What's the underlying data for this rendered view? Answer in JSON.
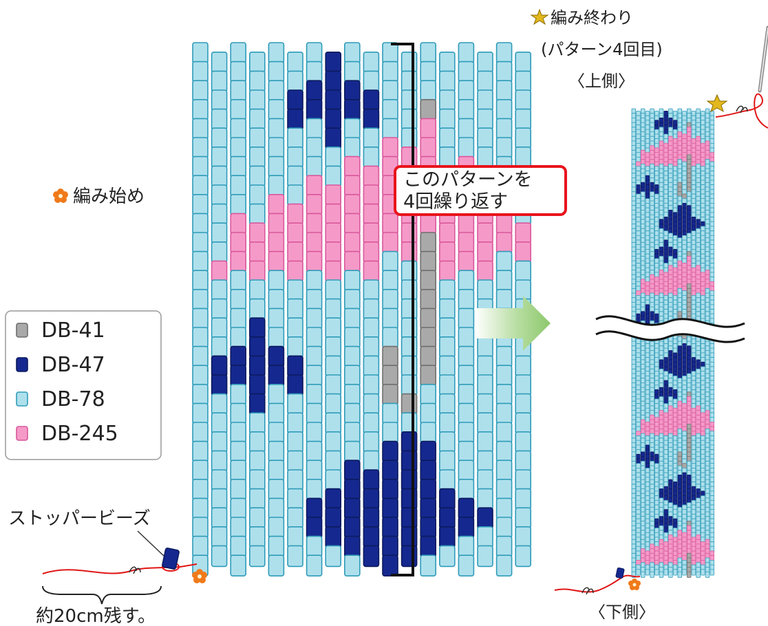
{
  "labels": {
    "start_marker": "編み始め",
    "repeat_note_line1": "このパターンを",
    "repeat_note_line2": "4回繰り返す",
    "end_marker_line1": "編み終わり",
    "end_marker_line2": "(パターン4回目)",
    "top_side": "〈上側〉",
    "bottom_side": "〈下側〉",
    "stopper_bead": "ストッパービーズ",
    "tail_length": "約20cm残す。"
  },
  "legend": [
    {
      "code": "DB-41",
      "color": "#a9a9a9",
      "border": "#6e6e6e"
    },
    {
      "code": "DB-47",
      "color": "#15288f",
      "border": "#0b1a5e"
    },
    {
      "code": "DB-78",
      "color": "#aee0ec",
      "border": "#2e9bb8"
    },
    {
      "code": "DB-245",
      "color": "#f59ac8",
      "border": "#d9579b"
    }
  ],
  "colors": {
    "bead_map": {
      "G": "#a9a9a9",
      "N": "#15288f",
      "L": "#aee0ec",
      "P": "#f59ac8"
    },
    "bead_border_map": {
      "G": "#6e6e6e",
      "N": "#0b1a5e",
      "L": "#2e9bb8",
      "P": "#d9579b"
    },
    "repeat_note_border": "#e8141c",
    "arrow": "#8cc86c",
    "thread": "#e01515",
    "start_marker": "#f07a1a",
    "end_marker": "#e2b81e"
  },
  "pattern_rows": [
    "LLLLLLLNLLLLLLLLLL",
    "LLLLLLLNLLLLLLLLLL",
    "LLLLLNNNNNLLLLLLLL",
    "LLLLLNNNNNLLGLLLLL",
    "LLLLLLLNLLLLPLLLLL",
    "LLLLLLLLLLPPPLLLLL",
    "LLLLLLLLPPPPPPPLLL",
    "LLLLLLPPPPPPPPPPPL",
    "LLLLPPPPPPPPPPPPPL",
    "LLPPPPPPPPPPPPPPPP",
    "LLPPPPPPPPPPGPPPPP",
    "LPPPPPPPPPLLGPPPLL",
    "LLLLLLLLLLLLGLLLLL",
    "LLLLLLLLLLLLGLLLLL",
    "LLLNLLLLLLLLGLLLLL",
    "LLLNLLLLLLLLGLLLLL",
    "LNNNNNLLLLGLGLLLLL",
    "LNNNNNLLLLGLGLLLLL",
    "LLLNLLLLLLGGLLLLLL",
    "LLLLLLLLLLLLLLLLLL",
    "LLLLLLLLLLLNLLLLLL",
    "LLLLLLLLLLNNNLLLLL",
    "LLLLLLLLNNNNNLLLLL",
    "LLLLLLLNNNNNNNLLLL",
    "LLLLLLNNNNNNNNNNLL",
    "LLLLLLNNNNNNNNNLLL",
    "LLLLLLLLNNNNNLLLLL",
    "LLLLLLLLLLNLLLLLLL"
  ]
}
